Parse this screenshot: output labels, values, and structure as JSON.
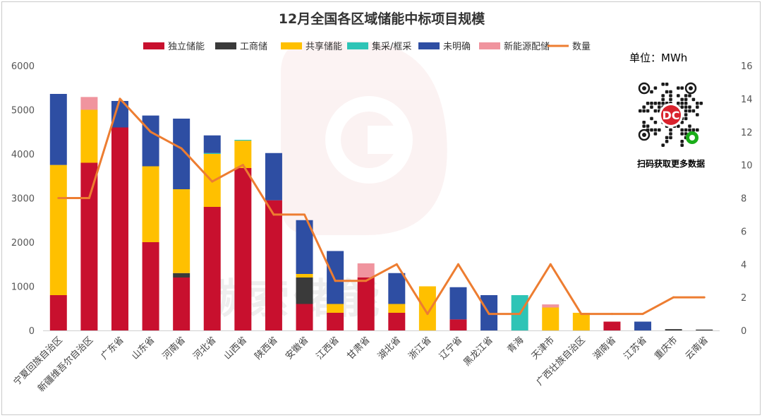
{
  "chart_data": {
    "type": "bar",
    "stacked": true,
    "title": "12月全国各区域储能中标项目规模",
    "unit_label": "单位：MWh",
    "categories": [
      "宁夏回族自治区",
      "新疆维吾尔自治区",
      "广东省",
      "山东省",
      "河南省",
      "河北省",
      "山西省",
      "陕西省",
      "安徽省",
      "江西省",
      "甘肃省",
      "湖北省",
      "浙江省",
      "辽宁省",
      "黑龙江省",
      "青海",
      "天津市",
      "广西壮族自治区",
      "湖南省",
      "江苏省",
      "重庆市",
      "云南省"
    ],
    "series": [
      {
        "name": "独立储能",
        "color": "#c8102e",
        "values": [
          800,
          3800,
          4600,
          2000,
          1200,
          2800,
          3680,
          2950,
          600,
          400,
          1200,
          400,
          0,
          250,
          0,
          0,
          0,
          0,
          200,
          0,
          0,
          0
        ]
      },
      {
        "name": "工商储",
        "color": "#3a3a3a",
        "values": [
          0,
          0,
          0,
          0,
          100,
          0,
          0,
          0,
          600,
          0,
          0,
          0,
          0,
          0,
          0,
          0,
          0,
          0,
          0,
          0,
          30,
          20
        ]
      },
      {
        "name": "共享储能",
        "color": "#ffc000",
        "values": [
          2950,
          1200,
          0,
          1720,
          1900,
          1200,
          620,
          0,
          80,
          200,
          0,
          200,
          1000,
          0,
          0,
          0,
          520,
          400,
          0,
          0,
          0,
          0
        ]
      },
      {
        "name": "集采/框采",
        "color": "#2ec4b6",
        "values": [
          0,
          0,
          0,
          0,
          0,
          20,
          20,
          0,
          0,
          0,
          0,
          0,
          0,
          0,
          0,
          800,
          0,
          0,
          0,
          0,
          0,
          0
        ]
      },
      {
        "name": "未明确",
        "color": "#2e4ea3",
        "values": [
          1610,
          0,
          600,
          1150,
          1600,
          400,
          0,
          1070,
          1220,
          1200,
          0,
          700,
          0,
          730,
          800,
          0,
          0,
          0,
          0,
          200,
          0,
          0
        ]
      },
      {
        "name": "新能源配储",
        "color": "#f0949e",
        "values": [
          0,
          290,
          0,
          0,
          0,
          0,
          0,
          0,
          0,
          0,
          320,
          0,
          0,
          0,
          0,
          0,
          70,
          0,
          0,
          0,
          0,
          0
        ]
      }
    ],
    "line": {
      "name": "数量",
      "color": "#ed7d31",
      "values": [
        8,
        8,
        14,
        12,
        11,
        9,
        10,
        7,
        7,
        3,
        3,
        4,
        1,
        4,
        1,
        1,
        4,
        1,
        1,
        1,
        2,
        2
      ]
    },
    "y_left": {
      "min": 0,
      "max": 6000,
      "ticks": [
        0,
        1000,
        2000,
        3000,
        4000,
        5000,
        6000
      ]
    },
    "y_right": {
      "min": 0,
      "max": 16,
      "ticks": [
        0,
        2,
        4,
        6,
        8,
        10,
        12,
        14,
        16
      ]
    },
    "legend_position": "top",
    "grid": false
  },
  "qr": {
    "caption": "扫码获取更多数据",
    "icon": "qr-code-icon"
  },
  "watermark": {
    "text": "碳索储能",
    "icon": "logo-watermark-icon"
  }
}
